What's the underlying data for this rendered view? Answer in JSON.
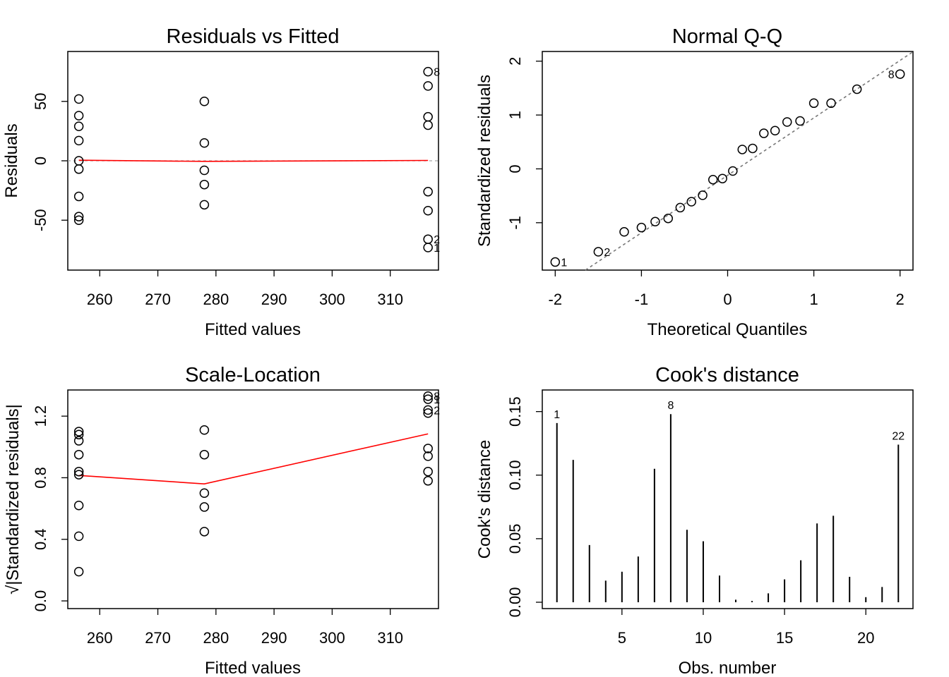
{
  "chart_data": [
    {
      "type": "scatter",
      "title": "Residuals vs Fitted",
      "xlabel": "Fitted values",
      "ylabel": "Residuals",
      "xlim": [
        254.5,
        318.3
      ],
      "ylim": [
        -92,
        92
      ],
      "xticks": [
        260,
        270,
        280,
        290,
        300,
        310
      ],
      "yticks": [
        -50,
        0,
        50
      ],
      "points": [
        [
          256.4,
          52
        ],
        [
          256.4,
          38
        ],
        [
          256.4,
          29
        ],
        [
          256.4,
          17
        ],
        [
          256.4,
          0
        ],
        [
          256.4,
          -7
        ],
        [
          256.4,
          -30
        ],
        [
          256.4,
          -47
        ],
        [
          256.4,
          -50
        ],
        [
          278.0,
          50
        ],
        [
          278.0,
          15
        ],
        [
          278.0,
          -8
        ],
        [
          278.0,
          -20
        ],
        [
          278.0,
          -37
        ],
        [
          316.5,
          75
        ],
        [
          316.5,
          63
        ],
        [
          316.5,
          37
        ],
        [
          316.5,
          30
        ],
        [
          316.5,
          -26
        ],
        [
          316.5,
          -42
        ],
        [
          316.5,
          -66
        ],
        [
          316.5,
          -73
        ]
      ],
      "labels": [
        {
          "x": 316.5,
          "y": 75,
          "text": "8"
        },
        {
          "x": 316.5,
          "y": -66,
          "text": "2"
        },
        {
          "x": 316.5,
          "y": -73,
          "text": "1"
        }
      ],
      "smooth": [
        [
          256.4,
          0.5
        ],
        [
          278.0,
          -0.5
        ],
        [
          316.5,
          0.3
        ]
      ],
      "reference_y": 0
    },
    {
      "type": "scatter",
      "title": "Normal Q-Q",
      "xlabel": "Theoretical Quantiles",
      "ylabel": "Standardized residuals",
      "xlim": [
        -2.15,
        2.15
      ],
      "ylim": [
        -1.88,
        2.18
      ],
      "xticks": [
        -2,
        -1,
        0,
        1,
        2
      ],
      "yticks": [
        -1,
        0,
        1,
        2
      ],
      "points": [
        [
          -2.0,
          -1.73
        ],
        [
          -1.5,
          -1.54
        ],
        [
          -1.2,
          -1.17
        ],
        [
          -1.0,
          -1.09
        ],
        [
          -0.84,
          -0.98
        ],
        [
          -0.69,
          -0.92
        ],
        [
          -0.55,
          -0.72
        ],
        [
          -0.42,
          -0.61
        ],
        [
          -0.29,
          -0.49
        ],
        [
          -0.17,
          -0.2
        ],
        [
          -0.06,
          -0.18
        ],
        [
          0.06,
          -0.04
        ],
        [
          0.17,
          0.36
        ],
        [
          0.29,
          0.38
        ],
        [
          0.42,
          0.66
        ],
        [
          0.55,
          0.71
        ],
        [
          0.69,
          0.87
        ],
        [
          0.84,
          0.89
        ],
        [
          1.0,
          1.22
        ],
        [
          1.2,
          1.22
        ],
        [
          1.5,
          1.48
        ],
        [
          2.0,
          1.76
        ]
      ],
      "labels": [
        {
          "x": -2.0,
          "y": -1.73,
          "text": "1",
          "side": "right"
        },
        {
          "x": -1.5,
          "y": -1.54,
          "text": "2",
          "side": "right"
        },
        {
          "x": 2.0,
          "y": 1.76,
          "text": "8",
          "side": "left"
        }
      ],
      "qqline": {
        "slope": 1.067,
        "intercept": -0.12
      }
    },
    {
      "type": "scatter",
      "title": "Scale-Location",
      "xlabel": "Fitted values",
      "ylabel": "√|Standardized residuals|",
      "xlim": [
        254.5,
        318.3
      ],
      "ylim": [
        -0.05,
        1.37
      ],
      "xticks": [
        260,
        270,
        280,
        290,
        300,
        310
      ],
      "yticks": [
        0.0,
        0.4,
        0.8,
        1.2
      ],
      "ytick_labels": [
        "0.0",
        "0.4",
        "0.8",
        "1.2"
      ],
      "points": [
        [
          256.4,
          1.1
        ],
        [
          256.4,
          1.08
        ],
        [
          256.4,
          1.04
        ],
        [
          256.4,
          0.95
        ],
        [
          256.4,
          0.84
        ],
        [
          256.4,
          0.82
        ],
        [
          256.4,
          0.62
        ],
        [
          256.4,
          0.42
        ],
        [
          256.4,
          0.19
        ],
        [
          278.0,
          1.11
        ],
        [
          278.0,
          0.95
        ],
        [
          278.0,
          0.7
        ],
        [
          278.0,
          0.61
        ],
        [
          278.0,
          0.45
        ],
        [
          316.5,
          1.33
        ],
        [
          316.5,
          1.31
        ],
        [
          316.5,
          1.24
        ],
        [
          316.5,
          1.22
        ],
        [
          316.5,
          0.99
        ],
        [
          316.5,
          0.94
        ],
        [
          316.5,
          0.84
        ],
        [
          316.5,
          0.78
        ]
      ],
      "labels": [
        {
          "x": 316.5,
          "y": 1.33,
          "text": "8"
        },
        {
          "x": 316.5,
          "y": 1.31,
          "text": "1"
        },
        {
          "x": 316.5,
          "y": 1.24,
          "text": "2"
        }
      ],
      "smooth": [
        [
          256.4,
          0.815
        ],
        [
          278.0,
          0.76
        ],
        [
          316.5,
          1.085
        ]
      ]
    },
    {
      "type": "bar",
      "title": "Cook's distance",
      "xlabel": "Obs. number",
      "ylabel": "Cook's distance",
      "xlim": [
        0.1,
        22.9
      ],
      "ylim": [
        -0.005,
        0.167
      ],
      "xticks": [
        5,
        10,
        15,
        20
      ],
      "yticks": [
        0.0,
        0.05,
        0.1,
        0.15
      ],
      "ytick_labels": [
        "0.00",
        "0.05",
        "0.10",
        "0.15"
      ],
      "x": [
        1,
        2,
        3,
        4,
        5,
        6,
        7,
        8,
        9,
        10,
        11,
        12,
        13,
        14,
        15,
        16,
        17,
        18,
        19,
        20,
        21,
        22
      ],
      "values": [
        0.141,
        0.112,
        0.045,
        0.017,
        0.024,
        0.036,
        0.105,
        0.148,
        0.057,
        0.048,
        0.021,
        0.002,
        0.001,
        0.007,
        0.018,
        0.033,
        0.062,
        0.068,
        0.02,
        0.004,
        0.012,
        0.124
      ],
      "labels": [
        {
          "x": 1,
          "text": "1"
        },
        {
          "x": 8,
          "text": "8"
        },
        {
          "x": 22,
          "text": "22"
        }
      ]
    }
  ]
}
